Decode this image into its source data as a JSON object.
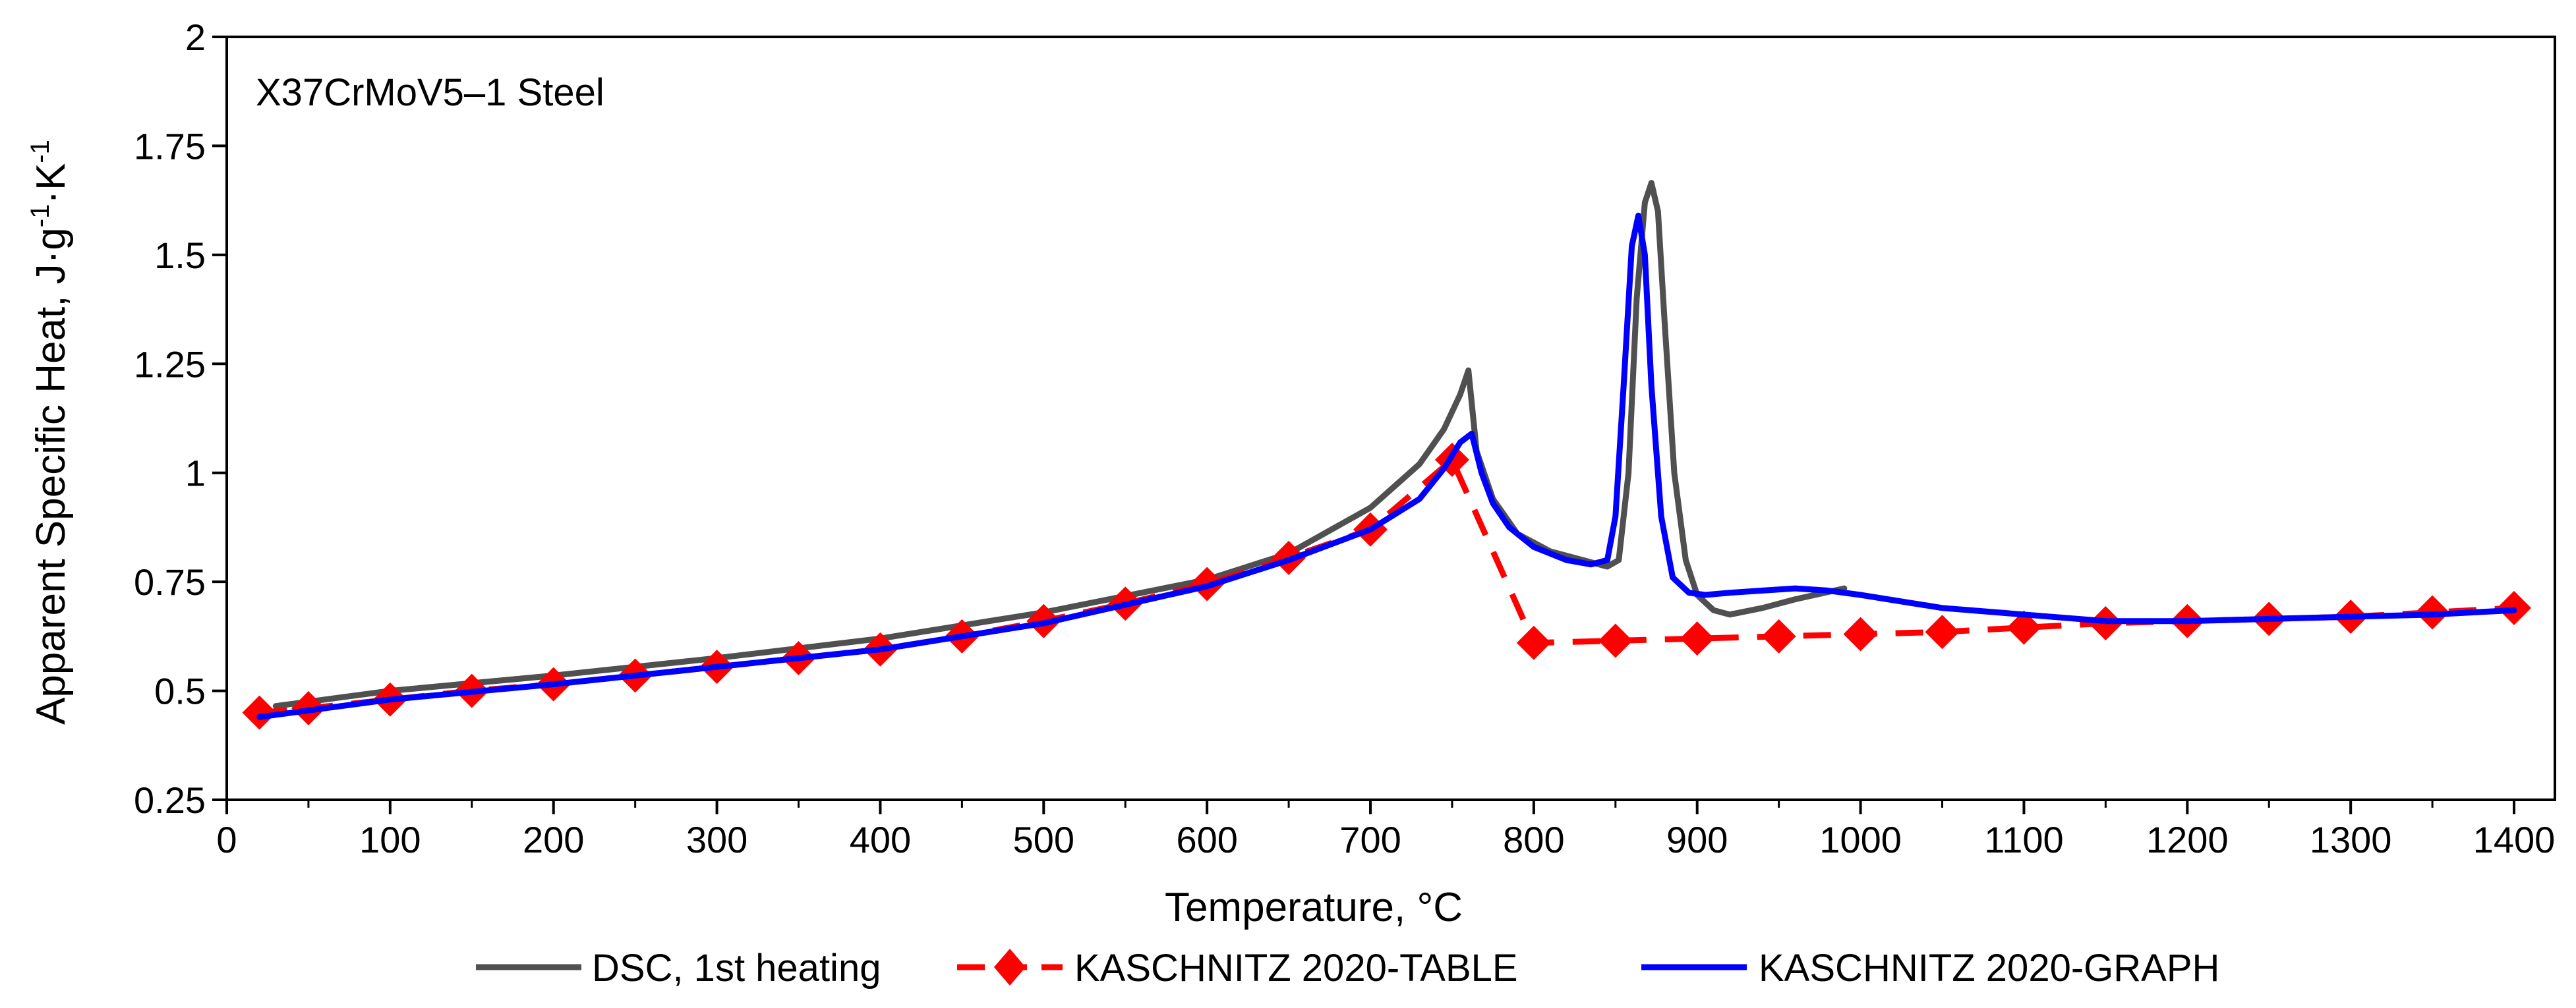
{
  "chart_data": {
    "type": "line",
    "title": "",
    "annotation": "X37CrMoV5–1 Steel",
    "xlabel": "Temperature, °C",
    "ylabel": {
      "text": "Apparent Specific Heat, J·g",
      "sup1": "-1",
      "mid": "·K",
      "sup2": "-1"
    },
    "xlim": [
      0,
      1425
    ],
    "ylim": [
      0.25,
      2
    ],
    "x_ticks": [
      0,
      100,
      200,
      300,
      400,
      500,
      600,
      700,
      800,
      900,
      1000,
      1100,
      1200,
      1300,
      1400
    ],
    "y_ticks": [
      0.25,
      0.5,
      0.75,
      1,
      1.25,
      1.5,
      1.75,
      2
    ],
    "x_tick_labels": [
      "0",
      "100",
      "200",
      "300",
      "400",
      "500",
      "600",
      "700",
      "800",
      "900",
      "1000",
      "1100",
      "1200",
      "1300",
      "1400"
    ],
    "y_tick_labels": [
      "0.25",
      "0.5",
      "0.75",
      "1",
      "1.25",
      "1.5",
      "1.75",
      "2"
    ],
    "legend_position": "bottom",
    "series": [
      {
        "name": "DSC, 1st heating",
        "color": "#505050",
        "style": "solid",
        "marker": "none",
        "x": [
          30,
          100,
          200,
          300,
          400,
          500,
          600,
          650,
          700,
          730,
          745,
          755,
          760,
          765,
          775,
          790,
          810,
          830,
          845,
          852,
          858,
          863,
          868,
          872,
          876,
          880,
          886,
          893,
          900,
          910,
          920,
          940,
          960,
          990
        ],
        "y": [
          0.465,
          0.5,
          0.535,
          0.575,
          0.62,
          0.68,
          0.755,
          0.815,
          0.92,
          1.02,
          1.1,
          1.18,
          1.235,
          1.05,
          0.94,
          0.86,
          0.82,
          0.8,
          0.785,
          0.8,
          1.0,
          1.4,
          1.62,
          1.665,
          1.6,
          1.35,
          1.0,
          0.8,
          0.72,
          0.685,
          0.675,
          0.69,
          0.71,
          0.735
        ]
      },
      {
        "name": "KASCHNITZ 2020-TABLE",
        "color": "#ff0000",
        "style": "dashed",
        "marker": "diamond",
        "x": [
          20,
          50,
          100,
          150,
          200,
          250,
          300,
          350,
          400,
          450,
          500,
          550,
          600,
          650,
          700,
          750,
          800,
          850,
          900,
          950,
          1000,
          1050,
          1100,
          1150,
          1200,
          1250,
          1300,
          1350,
          1400
        ],
        "y": [
          0.45,
          0.46,
          0.48,
          0.5,
          0.515,
          0.535,
          0.555,
          0.575,
          0.595,
          0.625,
          0.66,
          0.7,
          0.745,
          0.805,
          0.87,
          1.03,
          0.61,
          0.615,
          0.62,
          0.625,
          0.63,
          0.635,
          0.645,
          0.655,
          0.66,
          0.665,
          0.67,
          0.68,
          0.69
        ]
      },
      {
        "name": "KASCHNITZ 2020-GRAPH",
        "color": "#0000ff",
        "style": "solid",
        "marker": "none",
        "x": [
          20,
          100,
          200,
          300,
          400,
          500,
          600,
          650,
          700,
          730,
          745,
          755,
          762,
          768,
          775,
          785,
          800,
          820,
          835,
          845,
          850,
          855,
          860,
          864,
          868,
          872,
          878,
          885,
          895,
          905,
          920,
          940,
          960,
          980,
          1000,
          1050,
          1100,
          1150,
          1200,
          1250,
          1300,
          1350,
          1400
        ],
        "y": [
          0.44,
          0.48,
          0.515,
          0.555,
          0.595,
          0.655,
          0.74,
          0.8,
          0.87,
          0.94,
          1.01,
          1.07,
          1.09,
          1.0,
          0.93,
          0.875,
          0.83,
          0.8,
          0.79,
          0.8,
          0.9,
          1.2,
          1.52,
          1.59,
          1.5,
          1.2,
          0.9,
          0.76,
          0.725,
          0.72,
          0.725,
          0.73,
          0.735,
          0.73,
          0.72,
          0.69,
          0.675,
          0.66,
          0.66,
          0.665,
          0.67,
          0.675,
          0.685
        ]
      }
    ]
  }
}
